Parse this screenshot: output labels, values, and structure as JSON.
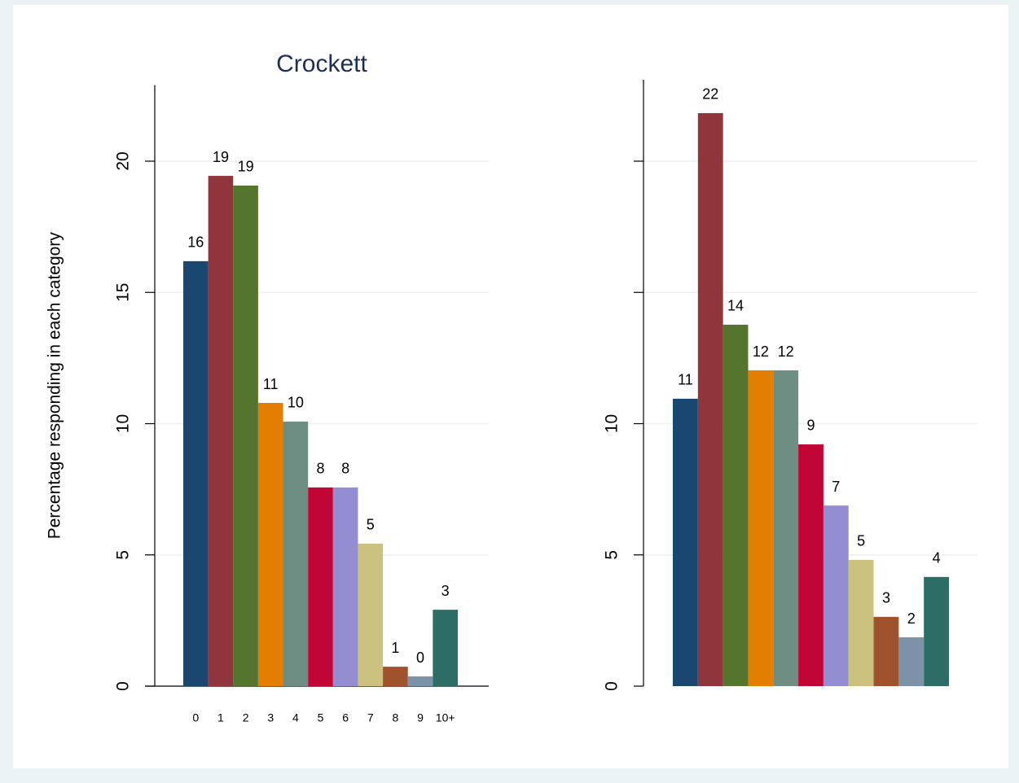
{
  "chart_data": [
    {
      "type": "bar",
      "title": "Crockett",
      "y_label": "Percentage responding in each category",
      "categories": [
        "0",
        "1",
        "2",
        "3",
        "4",
        "5",
        "6",
        "7",
        "8",
        "9",
        "10+"
      ],
      "values": [
        16.19,
        19.44,
        19.07,
        10.79,
        10.08,
        7.57,
        7.57,
        5.43,
        0.74,
        0.37,
        2.91
      ],
      "value_labels": [
        "16",
        "19",
        "19",
        "11",
        "10",
        "8",
        "8",
        "5",
        "1",
        "0",
        "3"
      ],
      "colors": [
        "#1a476f",
        "#90353b",
        "#55752f",
        "#e37e00",
        "#6e8e84",
        "#c10534",
        "#938dd2",
        "#cac27e",
        "#a0522d",
        "#7b92a8",
        "#2d6d66"
      ],
      "ylim": [
        0,
        22.9
      ],
      "yticks": [
        0,
        5,
        10,
        15,
        20
      ],
      "grid": true
    },
    {
      "type": "bar",
      "categories": [
        null,
        null,
        null,
        null,
        null,
        null,
        null,
        null,
        null,
        null,
        null
      ],
      "values": [
        10.95,
        21.83,
        13.77,
        12.03,
        12.03,
        9.21,
        6.88,
        4.81,
        2.64,
        1.86,
        4.16
      ],
      "value_labels": [
        "11",
        "22",
        "14",
        "12",
        "12",
        "9",
        "7",
        "5",
        "3",
        "2",
        "4"
      ],
      "colors": [
        "#1a476f",
        "#90353b",
        "#55752f",
        "#e37e00",
        "#6e8e84",
        "#c10534",
        "#938dd2",
        "#cac27e",
        "#a0522d",
        "#7b92a8",
        "#2d6d66"
      ],
      "ylim": [
        0,
        23.1
      ],
      "yticks": [
        0,
        5,
        10,
        {
          "value": 15,
          "label": null
        },
        {
          "value": 20,
          "label": null
        }
      ],
      "grid": true
    }
  ]
}
